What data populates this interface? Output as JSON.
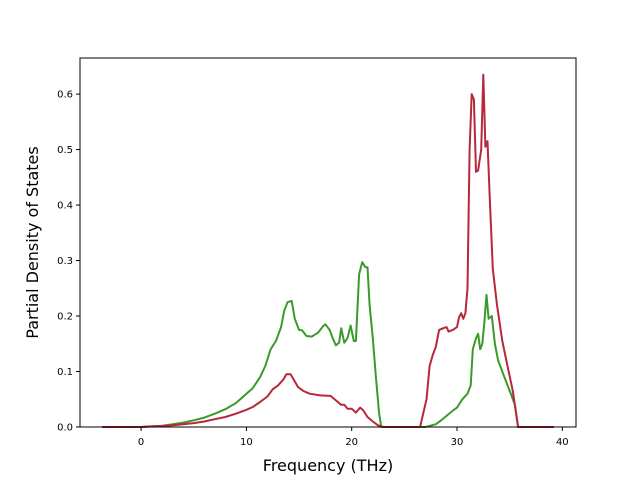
{
  "chart_data": {
    "type": "line",
    "title": "",
    "xlabel": "Frequency (THz)",
    "ylabel": "Partial Density of States",
    "xlim": [
      -5.8,
      41.3
    ],
    "ylim": [
      0,
      0.665
    ],
    "xticks": [
      0,
      10,
      20,
      30,
      40
    ],
    "yticks": [
      0.0,
      0.1,
      0.2,
      0.3,
      0.4,
      0.5,
      0.6
    ],
    "ytick_labels": [
      "0.0",
      "0.1",
      "0.2",
      "0.3",
      "0.4",
      "0.5",
      "0.6"
    ],
    "grid": false,
    "legend": "none",
    "series": [
      {
        "color": "#3a9a2a",
        "points": [
          [
            -3.7,
            0.0
          ],
          [
            -2,
            0.0
          ],
          [
            0,
            0.0
          ],
          [
            1,
            0.001
          ],
          [
            2,
            0.002
          ],
          [
            3,
            0.005
          ],
          [
            4,
            0.008
          ],
          [
            5,
            0.012
          ],
          [
            6,
            0.017
          ],
          [
            7,
            0.024
          ],
          [
            8,
            0.032
          ],
          [
            9,
            0.043
          ],
          [
            10,
            0.06
          ],
          [
            10.6,
            0.07
          ],
          [
            11.3,
            0.09
          ],
          [
            11.8,
            0.11
          ],
          [
            12.3,
            0.14
          ],
          [
            12.8,
            0.155
          ],
          [
            13.3,
            0.18
          ],
          [
            13.6,
            0.21
          ],
          [
            13.9,
            0.225
          ],
          [
            14.3,
            0.227
          ],
          [
            14.6,
            0.195
          ],
          [
            15.0,
            0.175
          ],
          [
            15.3,
            0.174
          ],
          [
            15.7,
            0.164
          ],
          [
            16.2,
            0.163
          ],
          [
            16.8,
            0.17
          ],
          [
            17.3,
            0.182
          ],
          [
            17.5,
            0.185
          ],
          [
            17.9,
            0.175
          ],
          [
            18.2,
            0.16
          ],
          [
            18.5,
            0.147
          ],
          [
            18.8,
            0.152
          ],
          [
            19.0,
            0.178
          ],
          [
            19.3,
            0.152
          ],
          [
            19.6,
            0.16
          ],
          [
            19.9,
            0.183
          ],
          [
            20.2,
            0.155
          ],
          [
            20.4,
            0.155
          ],
          [
            20.7,
            0.275
          ],
          [
            21.0,
            0.297
          ],
          [
            21.3,
            0.288
          ],
          [
            21.5,
            0.288
          ],
          [
            21.7,
            0.22
          ],
          [
            22.0,
            0.16
          ],
          [
            22.3,
            0.09
          ],
          [
            22.6,
            0.025
          ],
          [
            22.8,
            0.0
          ],
          [
            25,
            0.0
          ],
          [
            27,
            0.0
          ],
          [
            28,
            0.005
          ],
          [
            28.5,
            0.012
          ],
          [
            29,
            0.02
          ],
          [
            29.5,
            0.028
          ],
          [
            30,
            0.035
          ],
          [
            30.5,
            0.05
          ],
          [
            31,
            0.06
          ],
          [
            31.3,
            0.075
          ],
          [
            31.5,
            0.14
          ],
          [
            31.8,
            0.16
          ],
          [
            32.0,
            0.168
          ],
          [
            32.2,
            0.14
          ],
          [
            32.4,
            0.15
          ],
          [
            32.6,
            0.19
          ],
          [
            32.8,
            0.238
          ],
          [
            33.0,
            0.195
          ],
          [
            33.3,
            0.2
          ],
          [
            33.6,
            0.15
          ],
          [
            33.9,
            0.12
          ],
          [
            34.5,
            0.09
          ],
          [
            35.0,
            0.065
          ],
          [
            35.5,
            0.04
          ],
          [
            35.8,
            0.0
          ],
          [
            37,
            0.0
          ],
          [
            39.2,
            0.0
          ]
        ]
      },
      {
        "color": "#b8283a",
        "points": [
          [
            -3.7,
            0.0
          ],
          [
            -2,
            0.0
          ],
          [
            0,
            0.0
          ],
          [
            1,
            0.001
          ],
          [
            2,
            0.002
          ],
          [
            3,
            0.003
          ],
          [
            4,
            0.005
          ],
          [
            5,
            0.007
          ],
          [
            6,
            0.01
          ],
          [
            7,
            0.014
          ],
          [
            8,
            0.018
          ],
          [
            9,
            0.024
          ],
          [
            10,
            0.031
          ],
          [
            10.6,
            0.036
          ],
          [
            11.3,
            0.045
          ],
          [
            12,
            0.055
          ],
          [
            12.5,
            0.068
          ],
          [
            13,
            0.075
          ],
          [
            13.5,
            0.085
          ],
          [
            13.8,
            0.095
          ],
          [
            14.2,
            0.095
          ],
          [
            14.5,
            0.085
          ],
          [
            14.9,
            0.072
          ],
          [
            15.4,
            0.065
          ],
          [
            16.0,
            0.06
          ],
          [
            17.0,
            0.057
          ],
          [
            18.0,
            0.056
          ],
          [
            18.5,
            0.048
          ],
          [
            19.0,
            0.04
          ],
          [
            19.3,
            0.04
          ],
          [
            19.6,
            0.033
          ],
          [
            20.0,
            0.033
          ],
          [
            20.4,
            0.026
          ],
          [
            20.8,
            0.035
          ],
          [
            21.1,
            0.03
          ],
          [
            21.5,
            0.018
          ],
          [
            22.0,
            0.01
          ],
          [
            22.5,
            0.003
          ],
          [
            23,
            0.0
          ],
          [
            26.5,
            0.0
          ],
          [
            27.1,
            0.05
          ],
          [
            27.4,
            0.11
          ],
          [
            27.7,
            0.13
          ],
          [
            28.0,
            0.145
          ],
          [
            28.3,
            0.175
          ],
          [
            28.7,
            0.178
          ],
          [
            29.0,
            0.18
          ],
          [
            29.2,
            0.172
          ],
          [
            29.6,
            0.175
          ],
          [
            30.0,
            0.18
          ],
          [
            30.2,
            0.198
          ],
          [
            30.4,
            0.205
          ],
          [
            30.6,
            0.195
          ],
          [
            30.8,
            0.205
          ],
          [
            31.0,
            0.25
          ],
          [
            31.2,
            0.5
          ],
          [
            31.4,
            0.6
          ],
          [
            31.6,
            0.59
          ],
          [
            31.8,
            0.46
          ],
          [
            32.0,
            0.462
          ],
          [
            32.3,
            0.5
          ],
          [
            32.5,
            0.635
          ],
          [
            32.7,
            0.505
          ],
          [
            32.9,
            0.515
          ],
          [
            33.1,
            0.42
          ],
          [
            33.4,
            0.285
          ],
          [
            33.8,
            0.22
          ],
          [
            34.3,
            0.155
          ],
          [
            34.8,
            0.11
          ],
          [
            35.3,
            0.065
          ],
          [
            35.8,
            0.0
          ],
          [
            37,
            0.0
          ],
          [
            39.2,
            0.0
          ]
        ]
      }
    ]
  }
}
